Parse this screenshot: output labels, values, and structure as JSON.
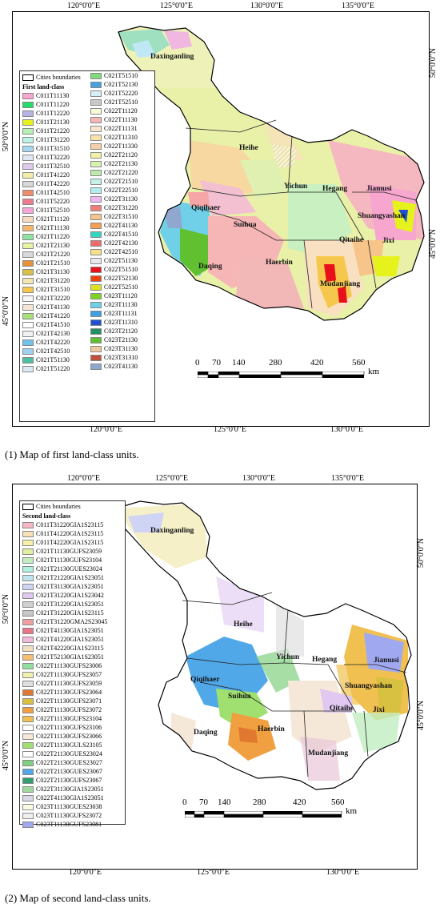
{
  "panel1": {
    "caption": "(1) Map of first land-class units.",
    "top_ticks": [
      "120°0'0\"E",
      "125°0'0\"E",
      "130°0'0\"E",
      "135°0'0\"E"
    ],
    "bottom_ticks": [
      "120°0'0\"E",
      "125°0'0\"E",
      "130°0'0\"E"
    ],
    "left_ticks": [
      "50°0'0\"N",
      "45°0'0\"N"
    ],
    "right_ticks": [
      "50°0'0\"N",
      "45°0'0\"N"
    ],
    "legend_boundary": "Cities boundaries",
    "legend_title": "First land-class",
    "legend_col1": [
      {
        "label": "C011T11130",
        "color": "#f7a6cf"
      },
      {
        "label": "C011T11220",
        "color": "#22dd66"
      },
      {
        "label": "C011T12220",
        "color": "#b7b3e6"
      },
      {
        "label": "C011T21130",
        "color": "#e6f21c"
      },
      {
        "label": "C011T21220",
        "color": "#b9f0b5"
      },
      {
        "label": "C011T31220",
        "color": "#bdf2e8"
      },
      {
        "label": "C011T31510",
        "color": "#a4d8ef"
      },
      {
        "label": "C011T32220",
        "color": "#dfe6f4"
      },
      {
        "label": "C011T32510",
        "color": "#e0c9ee"
      },
      {
        "label": "C011T41220",
        "color": "#f2f0a8"
      },
      {
        "label": "C011T42220",
        "color": "#d8d8d8"
      },
      {
        "label": "C011T42510",
        "color": "#ef8c6a"
      },
      {
        "label": "C011T52220",
        "color": "#ed7d8c"
      },
      {
        "label": "C011T52510",
        "color": "#f7a6d8"
      },
      {
        "label": "C021T11120",
        "color": "#f9dcc0"
      },
      {
        "label": "C021T11130",
        "color": "#f7b76a"
      },
      {
        "label": "C021T11220",
        "color": "#8fe3a1"
      },
      {
        "label": "C021T21130",
        "color": "#e5f5a4"
      },
      {
        "label": "C021T21220",
        "color": "#d9d9d9"
      },
      {
        "label": "C021T21510",
        "color": "#e8903a"
      },
      {
        "label": "C021T31130",
        "color": "#d8c14a"
      },
      {
        "label": "C021T31220",
        "color": "#f3e7b0"
      },
      {
        "label": "C021T31510",
        "color": "#f5c84d"
      },
      {
        "label": "C021T32220",
        "color": "#f7f7f7"
      },
      {
        "label": "C021T41130",
        "color": "#f7e6d6"
      },
      {
        "label": "C021T41220",
        "color": "#a8e07a"
      },
      {
        "label": "C021T41510",
        "color": "#ffffff"
      },
      {
        "label": "C021T42130",
        "color": "#f2f2f2"
      },
      {
        "label": "C021T42220",
        "color": "#6fc3e8"
      },
      {
        "label": "C021T42510",
        "color": "#9fd0f0"
      },
      {
        "label": "C021T51130",
        "color": "#4cc0a0"
      },
      {
        "label": "C021T51220",
        "color": "#dce9f7"
      }
    ],
    "legend_col2": [
      {
        "label": "C021T51510",
        "color": "#7fdc7a"
      },
      {
        "label": "C021T52130",
        "color": "#48a0e0"
      },
      {
        "label": "C021T52220",
        "color": "#d7f0f8"
      },
      {
        "label": "C021T52510",
        "color": "#c8c8c8"
      },
      {
        "label": "C022T11120",
        "color": "#fbfbd5"
      },
      {
        "label": "C022T11130",
        "color": "#f6b6b6"
      },
      {
        "label": "C022T11131",
        "color": "#f7e6cc"
      },
      {
        "label": "C022T11310",
        "color": "#f6e4a8"
      },
      {
        "label": "C022T11330",
        "color": "#f4d0a8"
      },
      {
        "label": "C022T21120",
        "color": "#f2f2a6"
      },
      {
        "label": "C022T21130",
        "color": "#d8f2b0"
      },
      {
        "label": "C022T21220",
        "color": "#bde9b0"
      },
      {
        "label": "C022T21510",
        "color": "#c7f0e8"
      },
      {
        "label": "C022T22510",
        "color": "#b0eef0"
      },
      {
        "label": "C022T31130",
        "color": "#f0b8f0"
      },
      {
        "label": "C022T31220",
        "color": "#f27c7c"
      },
      {
        "label": "C022T31510",
        "color": "#f7c48a"
      },
      {
        "label": "C022T41130",
        "color": "#f5a050"
      },
      {
        "label": "C022T41510",
        "color": "#30d8c0"
      },
      {
        "label": "C022T42130",
        "color": "#f56a6a"
      },
      {
        "label": "C022T42510",
        "color": "#f7e088"
      },
      {
        "label": "C022T51130",
        "color": "#e8e8f0"
      },
      {
        "label": "C022T51510",
        "color": "#e8101a"
      },
      {
        "label": "C022T52130",
        "color": "#f04010"
      },
      {
        "label": "C022T52510",
        "color": "#e0e020"
      },
      {
        "label": "C023T11120",
        "color": "#7cd420"
      },
      {
        "label": "C023T11130",
        "color": "#70d0e8"
      },
      {
        "label": "C023T11131",
        "color": "#40a0e0"
      },
      {
        "label": "C023T11310",
        "color": "#2050d0"
      },
      {
        "label": "C023T21120",
        "color": "#209060"
      },
      {
        "label": "C023T21130",
        "color": "#60c030"
      },
      {
        "label": "C023T31130",
        "color": "#f0c8a0"
      },
      {
        "label": "C023T31310",
        "color": "#c05040"
      },
      {
        "label": "C023T41130",
        "color": "#90a8d0"
      }
    ],
    "cities": [
      "Daxinganling",
      "Heihe",
      "Yichun",
      "Hegang",
      "Jiamusi",
      "Shuangyashan",
      "Qiqihaer",
      "Suihua",
      "Qitaihe",
      "Jixi",
      "Daqing",
      "Haerbin",
      "Mudanjiang"
    ],
    "scale_labels": [
      "0",
      "70",
      "140",
      "280",
      "420",
      "560"
    ],
    "scale_unit": "km"
  },
  "panel2": {
    "caption": "(2) Map of second land-class units.",
    "top_ticks": [
      "120°0'0\"E",
      "125°0'0\"E",
      "130°0'0\"E",
      "135°0'0\"E"
    ],
    "bottom_ticks": [
      "120°0'0\"E",
      "125°0'0\"E",
      "130°0'0\"E"
    ],
    "left_ticks": [
      "50°0'0\"N",
      "45°0'0\"N"
    ],
    "right_ticks": [
      "50°0'0\"N",
      "45°0'0\"N"
    ],
    "legend_boundary": "Cities boundaries",
    "legend_title": "Second land-class",
    "legend_items": [
      {
        "label": "C011T31220GIA1S23115",
        "color": "#f7b6c6"
      },
      {
        "label": "C011T41220GIA1S23115",
        "color": "#f9e0b8"
      },
      {
        "label": "C011T42220GIA1S23115",
        "color": "#f6f0a8"
      },
      {
        "label": "C021T11130GUFS23059",
        "color": "#e0f0a0"
      },
      {
        "label": "C021T11130GUFS23104",
        "color": "#c0eec0"
      },
      {
        "label": "C021T21130GUES23024",
        "color": "#b0f0e0"
      },
      {
        "label": "C021T21220GIA1S23051",
        "color": "#c0e4f4"
      },
      {
        "label": "C021T31130GIA1S23051",
        "color": "#d0d4f4"
      },
      {
        "label": "C021T31220GIA1S23042",
        "color": "#e0c8f0"
      },
      {
        "label": "C021T31220GIA1S23051",
        "color": "#d0d0d0"
      },
      {
        "label": "C021T31220GIA1S23115",
        "color": "#c8c8c8"
      },
      {
        "label": "C021T31220GMA2S23045",
        "color": "#f0a0a0"
      },
      {
        "label": "C021T41130GIA1S23051",
        "color": "#e87888"
      },
      {
        "label": "C021T41220GIA1S23051",
        "color": "#f4b8d8"
      },
      {
        "label": "C021T42220GIA1S23115",
        "color": "#f0e0c0"
      },
      {
        "label": "C021T52130GIA1S23051",
        "color": "#f6c070"
      },
      {
        "label": "C022T11130GUFS23006",
        "color": "#90e0a0"
      },
      {
        "label": "C022T11130GUFS23057",
        "color": "#f0f0b0"
      },
      {
        "label": "C022T11130GUFS23059",
        "color": "#e0e0e0"
      },
      {
        "label": "C022T11130GUFS23064",
        "color": "#e07830"
      },
      {
        "label": "C022T11130GUFS23071",
        "color": "#d8c040"
      },
      {
        "label": "C022T11130GUFS23072",
        "color": "#f0a040"
      },
      {
        "label": "C022T11130GUFS23104",
        "color": "#f0c050"
      },
      {
        "label": "C022T11130GUFS23106",
        "color": "#ffffff"
      },
      {
        "label": "C022T11130GUFS23066",
        "color": "#f6e8d8"
      },
      {
        "label": "C022T11130GULS23105",
        "color": "#a0e070"
      },
      {
        "label": "C022T21130GUES23024",
        "color": "#ffffff"
      },
      {
        "label": "C022T21130GUES23027",
        "color": "#80d080"
      },
      {
        "label": "C022T21130GUES23067",
        "color": "#50a8e8"
      },
      {
        "label": "C022T21130GUFS23067",
        "color": "#30a070"
      },
      {
        "label": "C022T31130GIA1S23051",
        "color": "#a0d8a0"
      },
      {
        "label": "C022T41130GIA1S23051",
        "color": "#d8d8e8"
      },
      {
        "label": "C023T11130GUES23038",
        "color": "#fbfbe0"
      },
      {
        "label": "C023T11130GUFS23072",
        "color": "#f0f0f0"
      },
      {
        "label": "C023T11130GUFS23081",
        "color": "#a0a8f0"
      }
    ],
    "cities": [
      "Daxinganling",
      "Heihe",
      "Yichun",
      "Hegang",
      "Jiamusi",
      "Qiqihaer",
      "Suihua",
      "Shuangyashan",
      "Qitaihe",
      "Jixi",
      "Daqing",
      "Haerbin",
      "Mudanjiang"
    ],
    "scale_labels": [
      "0",
      "70",
      "140",
      "280",
      "420",
      "560"
    ],
    "scale_unit": "km"
  }
}
